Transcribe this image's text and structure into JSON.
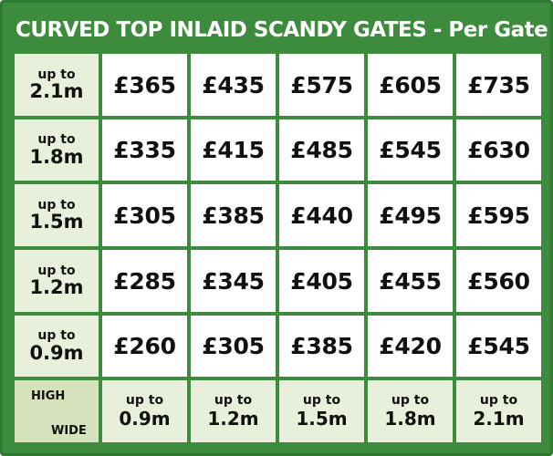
{
  "title": "CURVED TOP INLAID SCANDY GATES - Per Gate",
  "corner": {
    "high": "HIGH",
    "wide": "WIDE"
  },
  "rows": [
    {
      "up": "up to",
      "height": "2.1m",
      "prices": [
        "£365",
        "£435",
        "£575",
        "£605",
        "£735"
      ]
    },
    {
      "up": "up to",
      "height": "1.8m",
      "prices": [
        "£335",
        "£415",
        "£485",
        "£545",
        "£630"
      ]
    },
    {
      "up": "up to",
      "height": "1.5m",
      "prices": [
        "£305",
        "£385",
        "£440",
        "£495",
        "£595"
      ]
    },
    {
      "up": "up to",
      "height": "1.2m",
      "prices": [
        "£285",
        "£345",
        "£405",
        "£455",
        "£560"
      ]
    },
    {
      "up": "up to",
      "height": "0.9m",
      "prices": [
        "£260",
        "£305",
        "£385",
        "£420",
        "£545"
      ]
    }
  ],
  "columns": [
    {
      "up": "up to",
      "width": "0.9m"
    },
    {
      "up": "up to",
      "width": "1.2m"
    },
    {
      "up": "up to",
      "width": "1.5m"
    },
    {
      "up": "up to",
      "width": "1.8m"
    },
    {
      "up": "up to",
      "width": "2.1m"
    }
  ],
  "colors": {
    "green": "#3d8b3d",
    "header_fill": "#e8efda",
    "corner_fill": "#d5e2bc"
  }
}
